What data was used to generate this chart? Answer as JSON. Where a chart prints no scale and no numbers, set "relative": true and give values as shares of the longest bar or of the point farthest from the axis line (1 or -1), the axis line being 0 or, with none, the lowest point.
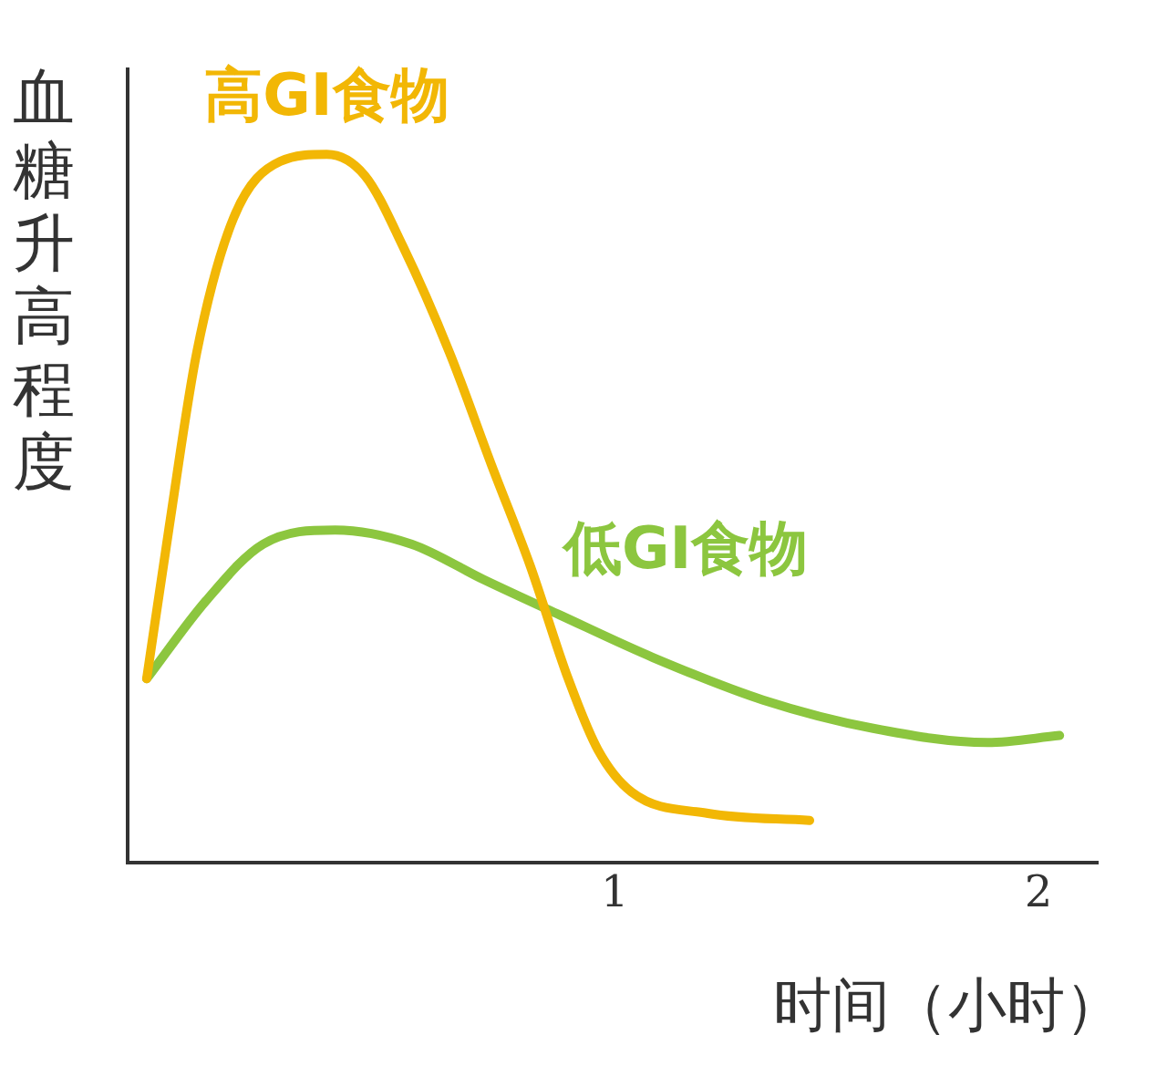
{
  "chart_data": {
    "type": "line",
    "relative": true,
    "ylabel": "血糖升高程度",
    "xlabel": "时间（小时）",
    "xlim": [
      -0.15,
      2.14
    ],
    "xticks": [
      1,
      2
    ],
    "grid": false,
    "legend": false,
    "marker": "none",
    "line_style": "solid",
    "series": [
      {
        "name": "高GI食物",
        "color": "#f2b705",
        "x": [
          -0.105,
          -0.053,
          0.013,
          0.1,
          0.21,
          0.32,
          0.41,
          0.5,
          0.61,
          0.71,
          0.8,
          0.89,
          0.96,
          1.04,
          1.22,
          1.46
        ],
        "values": [
          0.26,
          0.47,
          0.72,
          0.91,
          0.99,
          1.0,
          0.97,
          0.87,
          0.72,
          0.56,
          0.42,
          0.26,
          0.16,
          0.1,
          0.07,
          0.06
        ]
      },
      {
        "name": "低GI食物",
        "color": "#8cc63f",
        "x": [
          -0.105,
          0.035,
          0.17,
          0.34,
          0.52,
          0.69,
          0.87,
          1.09,
          1.35,
          1.61,
          1.88,
          2.05
        ],
        "values": [
          0.26,
          0.37,
          0.45,
          0.47,
          0.45,
          0.4,
          0.35,
          0.29,
          0.23,
          0.19,
          0.17,
          0.18
        ]
      }
    ]
  }
}
